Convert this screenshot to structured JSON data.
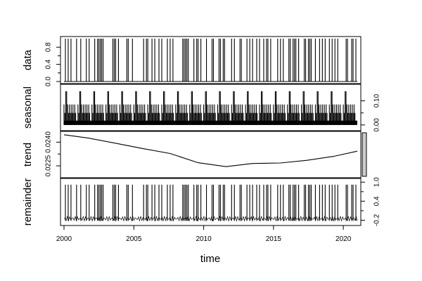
{
  "chart_data": {
    "type": "line",
    "xlabel": "time",
    "xlim": [
      2000,
      2021
    ],
    "x_ticks": [
      "2000",
      "2005",
      "2010",
      "2015",
      "2020"
    ],
    "panels": [
      {
        "name": "data",
        "ylim": [
          0,
          1
        ],
        "y_ticks": [
          "0.0",
          "0.4",
          "0.8"
        ],
        "tick_side": "left",
        "series_type": "spikes",
        "spike_years": [
          2000.1,
          2000.3,
          2000.5,
          2000.9,
          2001.2,
          2001.6,
          2001.8,
          2002.2,
          2002.4,
          2002.5,
          2002.6,
          2002.7,
          2002.8,
          2003.5,
          2003.6,
          2003.7,
          2003.9,
          2004.5,
          2004.6,
          2004.9,
          2005.7,
          2005.9,
          2006.0,
          2006.3,
          2006.5,
          2006.8,
          2007.0,
          2007.4,
          2007.6,
          2007.8,
          2008.5,
          2008.6,
          2008.7,
          2008.8,
          2008.9,
          2009.3,
          2009.5,
          2009.6,
          2009.8,
          2010.2,
          2010.6,
          2010.7,
          2011.1,
          2011.2,
          2011.4,
          2011.5,
          2012.0,
          2012.2,
          2012.6,
          2012.7,
          2013.1,
          2013.3,
          2013.5,
          2013.8,
          2014.0,
          2014.3,
          2014.5,
          2014.6,
          2014.8,
          2015.3,
          2015.5,
          2015.7,
          2016.1,
          2016.2,
          2016.4,
          2016.5,
          2016.6,
          2016.8,
          2017.2,
          2017.3,
          2017.5,
          2017.6,
          2017.7,
          2018.0,
          2018.3,
          2018.5,
          2018.7,
          2019.0,
          2019.2,
          2019.4,
          2019.6,
          2020.2,
          2020.3,
          2020.6,
          2020.7,
          2020.9
        ]
      },
      {
        "name": "seasonal",
        "ylim": [
          -0.015,
          0.16
        ],
        "y_ticks": [
          "0.00",
          "0.10"
        ],
        "tick_side": "right",
        "series_type": "seasonal",
        "period_years": 1,
        "tall_peak": 0.14,
        "short_peak": 0.085,
        "baseline": 0.0
      },
      {
        "name": "trend",
        "ylim": [
          0.02188,
          0.02455
        ],
        "y_ticks": [
          "0.0225",
          "0.0240"
        ],
        "tick_side": "left",
        "series_type": "line",
        "points": [
          [
            2000.0,
            0.02447
          ],
          [
            2001.8,
            0.02425
          ],
          [
            2003.7,
            0.02393
          ],
          [
            2005.6,
            0.0236
          ],
          [
            2007.6,
            0.02328
          ],
          [
            2009.6,
            0.0227
          ],
          [
            2011.6,
            0.02245
          ],
          [
            2013.5,
            0.02265
          ],
          [
            2015.5,
            0.02268
          ],
          [
            2017.4,
            0.02285
          ],
          [
            2019.3,
            0.0231
          ],
          [
            2021.0,
            0.02343
          ]
        ]
      },
      {
        "name": "remainder",
        "ylim": [
          -0.3,
          1.05
        ],
        "y_ticks": [
          "-0.2",
          "0.4",
          "1.0"
        ],
        "tick_side": "right",
        "series_type": "spikes_with_noise",
        "spike_height": 0.92,
        "noise_low": -0.22,
        "noise_high": -0.08,
        "baseline": -0.1
      }
    ]
  }
}
